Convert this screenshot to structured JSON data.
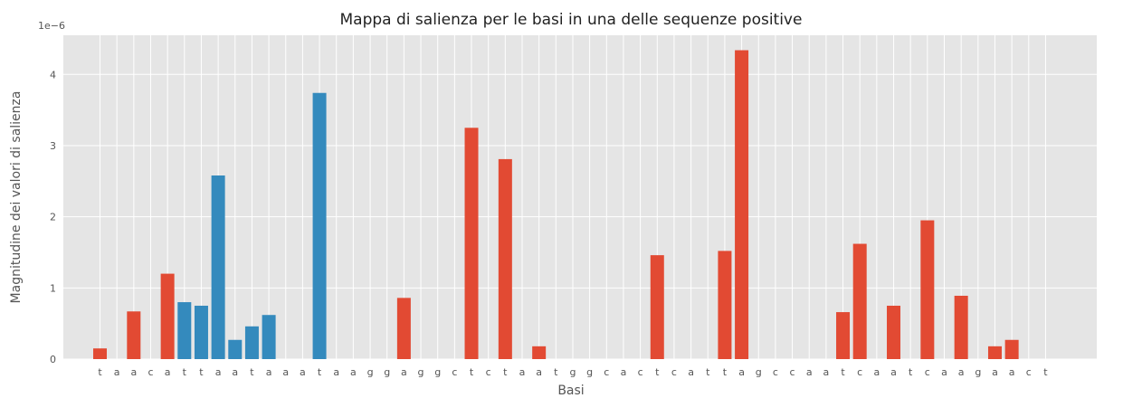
{
  "chart_data": {
    "type": "bar",
    "title": "Mappa di salienza per le basi in una delle sequenze positive",
    "xlabel": "Basi",
    "ylabel": "Magnitudine dei valori di salienza",
    "y_offset_label": "1e−6",
    "y_ticks": [
      "0",
      "1",
      "2",
      "3",
      "4"
    ],
    "ylim": [
      0,
      4.55
    ],
    "grid": true,
    "categories": [
      "t",
      "a",
      "a",
      "c",
      "a",
      "t",
      "t",
      "a",
      "a",
      "t",
      "a",
      "a",
      "a",
      "t",
      "a",
      "a",
      "g",
      "g",
      "a",
      "g",
      "g",
      "c",
      "t",
      "c",
      "t",
      "a",
      "a",
      "t",
      "g",
      "g",
      "c",
      "a",
      "c",
      "t",
      "c",
      "a",
      "t",
      "t",
      "a",
      "g",
      "c",
      "c",
      "a",
      "a",
      "t",
      "c",
      "a",
      "a",
      "t",
      "c",
      "a",
      "a",
      "g",
      "a",
      "a",
      "c",
      "t"
    ],
    "values": [
      0.15,
      0,
      0.67,
      0,
      1.2,
      0.8,
      0.75,
      2.58,
      0.27,
      0.46,
      0.62,
      0,
      0,
      3.74,
      0,
      0,
      0,
      0,
      0.86,
      0,
      0,
      0,
      3.25,
      0,
      2.81,
      0,
      0.18,
      0,
      0,
      0,
      0,
      0,
      0,
      1.46,
      0,
      0,
      0,
      1.52,
      4.34,
      0,
      0,
      0,
      0,
      0,
      0.66,
      1.62,
      0,
      0.75,
      0,
      1.95,
      0,
      0.89,
      0,
      0.18,
      0.27,
      0,
      0
    ],
    "colors_by_index": [
      "#E24A33",
      "#E24A33",
      "#E24A33",
      "#E24A33",
      "#E24A33",
      "#348ABD",
      "#348ABD",
      "#348ABD",
      "#348ABD",
      "#348ABD",
      "#348ABD",
      "#348ABD",
      "#348ABD",
      "#348ABD",
      "#E24A33",
      "#E24A33",
      "#E24A33",
      "#E24A33",
      "#E24A33",
      "#E24A33",
      "#E24A33",
      "#E24A33",
      "#E24A33",
      "#E24A33",
      "#E24A33",
      "#E24A33",
      "#E24A33",
      "#E24A33",
      "#E24A33",
      "#E24A33",
      "#E24A33",
      "#E24A33",
      "#E24A33",
      "#E24A33",
      "#E24A33",
      "#E24A33",
      "#E24A33",
      "#E24A33",
      "#E24A33",
      "#E24A33",
      "#E24A33",
      "#E24A33",
      "#E24A33",
      "#E24A33",
      "#E24A33",
      "#E24A33",
      "#E24A33",
      "#E24A33",
      "#E24A33",
      "#E24A33",
      "#E24A33",
      "#E24A33",
      "#E24A33",
      "#E24A33",
      "#E24A33",
      "#E24A33",
      "#E24A33"
    ],
    "style": {
      "background": "#E5E5E5",
      "grid_color": "#FFFFFF",
      "text_color": "#555555",
      "red": "#E24A33",
      "blue": "#348ABD"
    }
  }
}
